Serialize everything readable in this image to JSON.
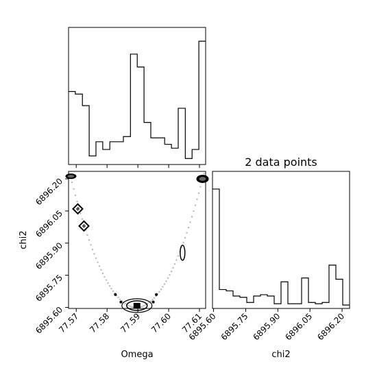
{
  "chart_data": {
    "type": "corner",
    "parameters": [
      "Omega",
      "chi2"
    ],
    "panels": [
      {
        "id": "hist-omega",
        "type": "histogram",
        "xlim": [
          77.5675,
          77.612
        ],
        "bin_edges": [
          77.5675,
          77.5697,
          77.572,
          77.5742,
          77.5764,
          77.5786,
          77.5809,
          77.5831,
          77.5853,
          77.5876,
          77.5898,
          77.592,
          77.5942,
          77.5965,
          77.5987,
          77.6009,
          77.6031,
          77.6054,
          77.6076,
          77.6098,
          77.612
        ],
        "counts": [
          0.54,
          0.52,
          0.43,
          0.04,
          0.15,
          0.09,
          0.15,
          0.15,
          0.19,
          0.83,
          0.73,
          0.3,
          0.18,
          0.18,
          0.13,
          0.1,
          0.41,
          0.02,
          0.09,
          0.93
        ]
      },
      {
        "id": "hist-chi2",
        "type": "histogram",
        "title": "2 data points",
        "xlabel": "chi2",
        "xlim": [
          6895.595,
          6896.235
        ],
        "xticks": [
          "6895.60",
          "6895.75",
          "6895.90",
          "6896.05",
          "6896.20"
        ],
        "bin_edges": [
          6895.595,
          6895.627,
          6895.659,
          6895.691,
          6895.723,
          6895.755,
          6895.787,
          6895.819,
          6895.851,
          6895.883,
          6895.915,
          6895.947,
          6895.979,
          6896.011,
          6896.043,
          6896.075,
          6896.107,
          6896.139,
          6896.171,
          6896.203,
          6896.235
        ],
        "counts": [
          0.9,
          0.12,
          0.11,
          0.07,
          0.06,
          0.02,
          0.07,
          0.08,
          0.07,
          0.01,
          0.18,
          0.01,
          0.01,
          0.21,
          0.02,
          0.01,
          0.02,
          0.31,
          0.2,
          0.0
        ]
      },
      {
        "id": "scatter-omega-chi2",
        "type": "contour-scatter",
        "xlabel": "Omega",
        "ylabel": "chi2",
        "xlim": [
          77.5675,
          77.612
        ],
        "ylim": [
          6895.595,
          6896.235
        ],
        "xticks": [
          "77.57",
          "77.58",
          "77.59",
          "77.60",
          "77.61"
        ],
        "yticks": [
          "6895.60",
          "6895.75",
          "6895.90",
          "6896.05",
          "6896.20"
        ],
        "curve_min": [
          77.5895,
          6895.6
        ],
        "curve_left": [
          77.5678,
          6896.23
        ],
        "curve_right": [
          77.611,
          6896.2
        ],
        "blobs": [
          {
            "x": 77.5676,
            "y": 6896.225
          },
          {
            "x": 77.5705,
            "y": 6896.06
          },
          {
            "x": 77.5725,
            "y": 6895.98
          },
          {
            "x": 77.5897,
            "y": 6895.605
          },
          {
            "x": 77.611,
            "y": 6896.2
          },
          {
            "x": 77.6045,
            "y": 6895.855
          }
        ]
      }
    ]
  }
}
